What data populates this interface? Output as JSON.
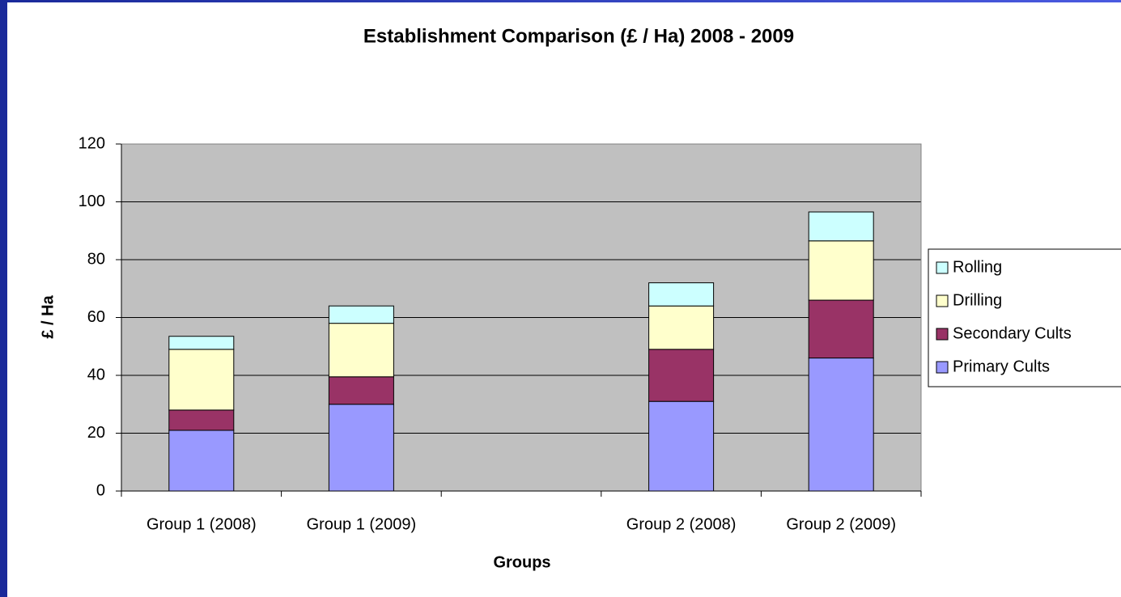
{
  "chart_data": {
    "type": "stacked_bar",
    "title": "Establishment Comparison (£ / Ha) 2008 - 2009",
    "x_label": "Groups",
    "y_label": "£ / Ha",
    "categories": [
      "Group 1 (2008)",
      "Group 1 (2009)",
      null,
      "Group 2 (2008)",
      "Group 2 (2009)"
    ],
    "series": [
      {
        "name": "Primary Cults",
        "color": "#9999ff",
        "values": [
          21,
          30,
          null,
          31,
          46
        ]
      },
      {
        "name": "Secondary Cults",
        "color": "#993366",
        "values": [
          7,
          9.5,
          null,
          18,
          20
        ]
      },
      {
        "name": "Drilling",
        "color": "#ffffcc",
        "values": [
          21,
          18.5,
          null,
          15,
          20.5
        ]
      },
      {
        "name": "Rolling",
        "color": "#ccffff",
        "values": [
          4.5,
          6,
          null,
          8,
          10
        ]
      }
    ],
    "ylim": [
      0,
      120
    ],
    "yticks": [
      0,
      20,
      40,
      60,
      80,
      100,
      120
    ],
    "grid": true,
    "legend": "right"
  }
}
